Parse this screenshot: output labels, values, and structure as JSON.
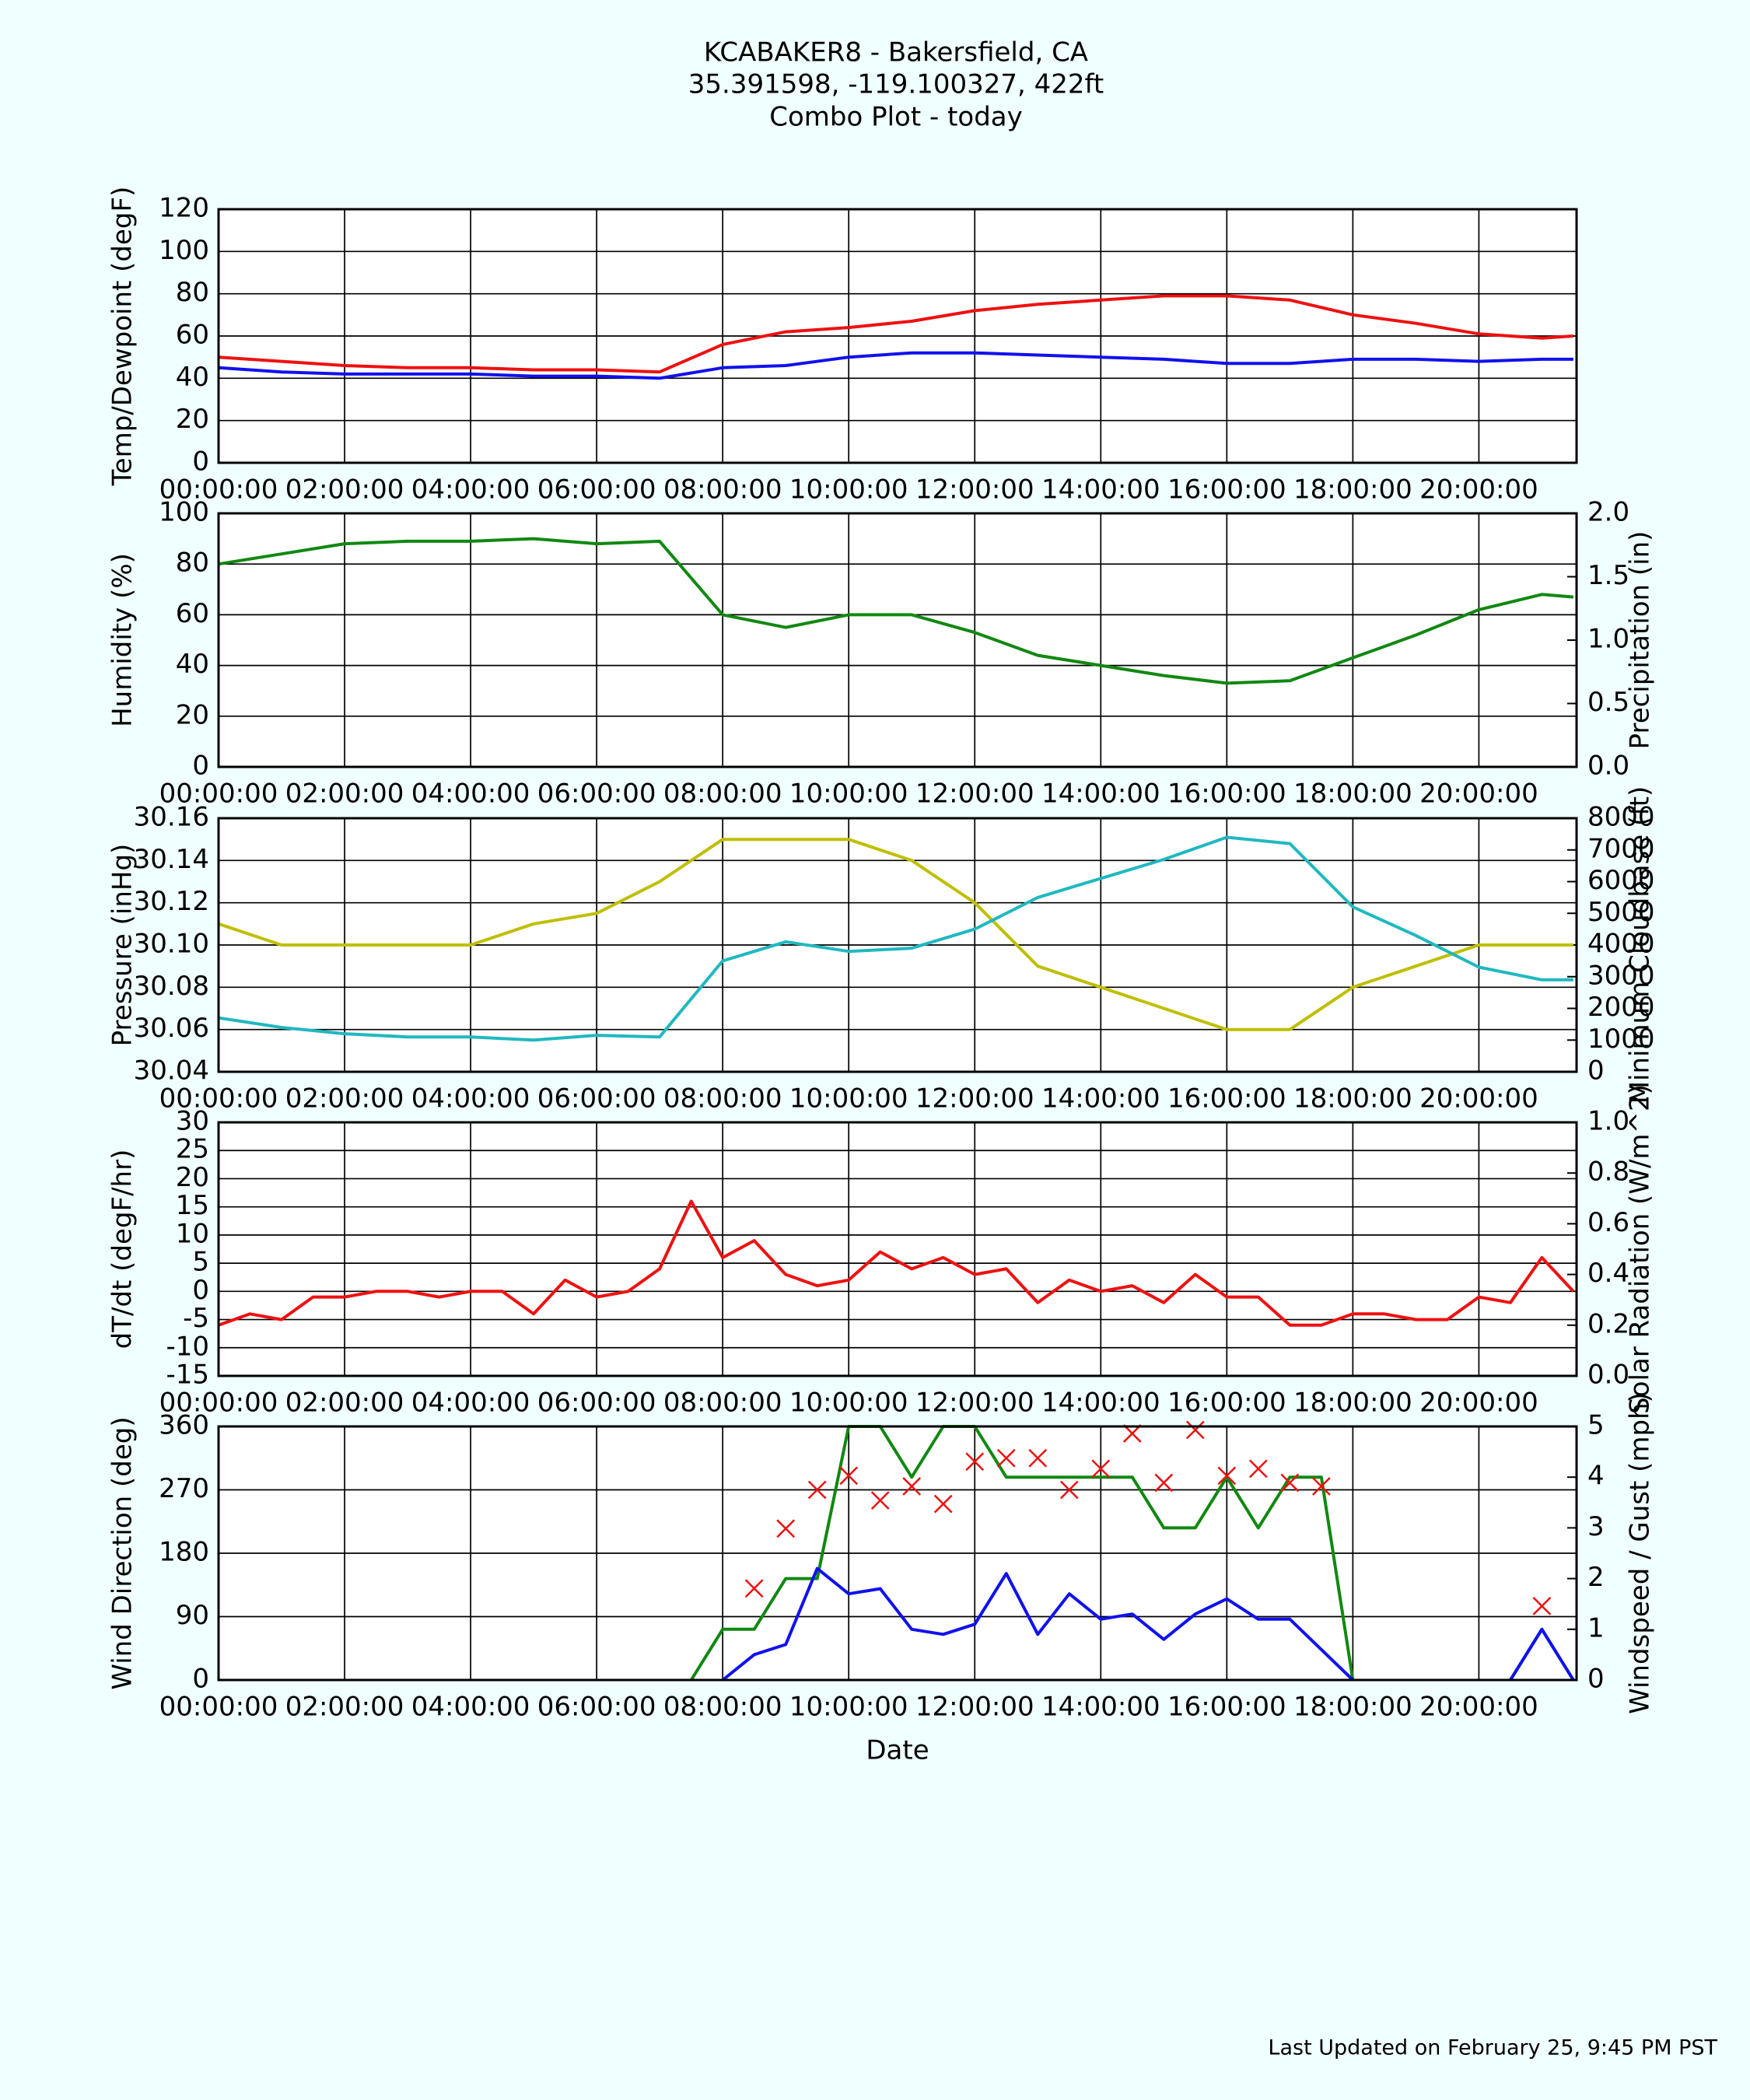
{
  "title": [
    "KCABAKER8 - Bakersfield, CA",
    "35.391598, -119.100327, 422ft",
    "Combo Plot - today"
  ],
  "footer": "Last Updated on February 25, 9:45 PM PST",
  "chart_data": [
    {
      "type": "line",
      "ylabel": "Temp/Dewpoint (degF)",
      "grid": true,
      "x": [
        "00:00:00",
        "01:00:00",
        "02:00:00",
        "03:00:00",
        "04:00:00",
        "05:00:00",
        "06:00:00",
        "07:00:00",
        "08:00:00",
        "09:00:00",
        "10:00:00",
        "11:00:00",
        "12:00:00",
        "13:00:00",
        "14:00:00",
        "15:00:00",
        "16:00:00",
        "17:00:00",
        "18:00:00",
        "19:00:00",
        "20:00:00",
        "21:00:00",
        "21:30:00"
      ],
      "xlim": [
        "00:00:00",
        "21:33:00"
      ],
      "xticks": [
        "00:00:00",
        "02:00:00",
        "04:00:00",
        "06:00:00",
        "08:00:00",
        "10:00:00",
        "12:00:00",
        "14:00:00",
        "16:00:00",
        "18:00:00",
        "20:00:00"
      ],
      "ylim": [
        0,
        120
      ],
      "yticks": [
        0,
        20,
        40,
        60,
        80,
        100,
        120
      ],
      "series": [
        {
          "color": "#ee1111",
          "values": [
            50,
            48,
            46,
            45,
            45,
            44,
            44,
            43,
            56,
            62,
            64,
            67,
            72,
            75,
            77,
            79,
            79,
            77,
            70,
            66,
            61,
            59,
            60
          ]
        },
        {
          "color": "#1111ee",
          "values": [
            45,
            43,
            42,
            42,
            42,
            41,
            41,
            40,
            45,
            46,
            50,
            52,
            52,
            51,
            50,
            49,
            47,
            47,
            49,
            49,
            48,
            49,
            49
          ]
        }
      ]
    },
    {
      "type": "line",
      "ylabel": "Humidity (%)",
      "y2label": "Precipitation (in)",
      "grid": true,
      "x": [
        "00:00:00",
        "01:00:00",
        "02:00:00",
        "03:00:00",
        "04:00:00",
        "05:00:00",
        "06:00:00",
        "07:00:00",
        "08:00:00",
        "09:00:00",
        "10:00:00",
        "11:00:00",
        "12:00:00",
        "13:00:00",
        "14:00:00",
        "15:00:00",
        "16:00:00",
        "17:00:00",
        "18:00:00",
        "19:00:00",
        "20:00:00",
        "21:00:00",
        "21:30:00"
      ],
      "xlim": [
        "00:00:00",
        "21:33:00"
      ],
      "xticks": [
        "00:00:00",
        "02:00:00",
        "04:00:00",
        "06:00:00",
        "08:00:00",
        "10:00:00",
        "12:00:00",
        "14:00:00",
        "16:00:00",
        "18:00:00",
        "20:00:00"
      ],
      "ylim": [
        0,
        100
      ],
      "yticks": [
        0,
        20,
        40,
        60,
        80,
        100
      ],
      "y2lim": [
        0,
        2
      ],
      "y2ticks": [
        {
          "value": 0,
          "label": "0.0"
        },
        0.5,
        {
          "value": 1,
          "label": "1.0"
        },
        1.5,
        {
          "value": 2,
          "label": "2.0"
        }
      ],
      "series": [
        {
          "color": "#118811",
          "values": [
            80,
            84,
            88,
            89,
            89,
            90,
            88,
            89,
            60,
            55,
            60,
            60,
            53,
            44,
            40,
            36,
            33,
            34,
            43,
            52,
            62,
            68,
            67
          ]
        }
      ]
    },
    {
      "type": "line",
      "ylabel": "Pressure (inHg)",
      "y2label": "Minimum Cloudbase (ft)",
      "grid": true,
      "x": [
        "00:00:00",
        "01:00:00",
        "02:00:00",
        "03:00:00",
        "04:00:00",
        "05:00:00",
        "06:00:00",
        "07:00:00",
        "08:00:00",
        "09:00:00",
        "10:00:00",
        "11:00:00",
        "12:00:00",
        "13:00:00",
        "14:00:00",
        "15:00:00",
        "16:00:00",
        "17:00:00",
        "18:00:00",
        "19:00:00",
        "20:00:00",
        "21:00:00",
        "21:30:00"
      ],
      "xlim": [
        "00:00:00",
        "21:33:00"
      ],
      "xticks": [
        "00:00:00",
        "02:00:00",
        "04:00:00",
        "06:00:00",
        "08:00:00",
        "10:00:00",
        "12:00:00",
        "14:00:00",
        "16:00:00",
        "18:00:00",
        "20:00:00"
      ],
      "ylim": [
        30.04,
        30.16
      ],
      "yticks": [
        30.04,
        30.06,
        30.08,
        {
          "value": 30.1,
          "label": "30.10"
        },
        30.12,
        30.14,
        30.16
      ],
      "y2lim": [
        0,
        8000
      ],
      "y2ticks": [
        0,
        1000,
        2000,
        3000,
        4000,
        5000,
        6000,
        7000,
        8000
      ],
      "series": [
        {
          "color": "#bfbf00",
          "values": [
            30.11,
            30.1,
            30.1,
            30.1,
            30.1,
            30.11,
            30.115,
            30.13,
            30.15,
            30.15,
            30.15,
            30.14,
            30.12,
            30.09,
            30.08,
            30.07,
            30.06,
            30.06,
            30.08,
            30.09,
            30.1,
            30.1,
            30.1
          ]
        },
        {
          "color": "#20b8c0",
          "axis": "y2",
          "values": [
            1700,
            1400,
            1200,
            1100,
            1100,
            1000,
            1150,
            1100,
            3500,
            4100,
            3800,
            3900,
            4500,
            5500,
            6100,
            6700,
            7400,
            7200,
            5200,
            4300,
            3300,
            2900,
            2900
          ]
        }
      ]
    },
    {
      "type": "line",
      "ylabel": "dT/dt (degF/hr)",
      "y2label": "Solar Radiation (W/m^2)",
      "grid": true,
      "x": [
        "00:00:00",
        "00:30:00",
        "01:00:00",
        "01:30:00",
        "02:00:00",
        "02:30:00",
        "03:00:00",
        "03:30:00",
        "04:00:00",
        "04:30:00",
        "05:00:00",
        "05:30:00",
        "06:00:00",
        "06:30:00",
        "07:00:00",
        "07:30:00",
        "08:00:00",
        "08:30:00",
        "09:00:00",
        "09:30:00",
        "10:00:00",
        "10:30:00",
        "11:00:00",
        "11:30:00",
        "12:00:00",
        "12:30:00",
        "13:00:00",
        "13:30:00",
        "14:00:00",
        "14:30:00",
        "15:00:00",
        "15:30:00",
        "16:00:00",
        "16:30:00",
        "17:00:00",
        "17:30:00",
        "18:00:00",
        "18:30:00",
        "19:00:00",
        "19:30:00",
        "20:00:00",
        "20:30:00",
        "21:00:00",
        "21:30:00"
      ],
      "xlim": [
        "00:00:00",
        "21:33:00"
      ],
      "xticks": [
        "00:00:00",
        "02:00:00",
        "04:00:00",
        "06:00:00",
        "08:00:00",
        "10:00:00",
        "12:00:00",
        "14:00:00",
        "16:00:00",
        "18:00:00",
        "20:00:00"
      ],
      "ylim": [
        -15,
        30
      ],
      "yticks": [
        -15,
        -10,
        -5,
        0,
        5,
        10,
        15,
        20,
        25,
        30
      ],
      "y2lim": [
        0,
        1
      ],
      "y2ticks": [
        {
          "value": 0,
          "label": "0.0"
        },
        0.2,
        0.4,
        0.6,
        0.8,
        {
          "value": 1,
          "label": "1.0"
        }
      ],
      "series": [
        {
          "color": "#ee1111",
          "values": [
            -6,
            -4,
            -5,
            -1,
            -1,
            0,
            0,
            -1,
            0,
            0,
            -4,
            2,
            -1,
            0,
            4,
            16,
            6,
            9,
            3,
            1,
            2,
            7,
            4,
            6,
            3,
            4,
            -2,
            2,
            0,
            1,
            -2,
            3,
            -1,
            -1,
            -6,
            -6,
            -4,
            -4,
            -5,
            -5,
            -1,
            -2,
            6,
            0
          ]
        }
      ]
    },
    {
      "type": "line",
      "ylabel": "Wind Direction (deg)",
      "y2label": "Windspeed / Gust (mph)",
      "xlabel": "Date",
      "grid": true,
      "x": [
        "00:00:00",
        "00:30:00",
        "01:00:00",
        "01:30:00",
        "02:00:00",
        "02:30:00",
        "03:00:00",
        "03:30:00",
        "04:00:00",
        "04:30:00",
        "05:00:00",
        "05:30:00",
        "06:00:00",
        "06:30:00",
        "07:00:00",
        "07:30:00",
        "08:00:00",
        "08:30:00",
        "09:00:00",
        "09:30:00",
        "10:00:00",
        "10:30:00",
        "11:00:00",
        "11:30:00",
        "12:00:00",
        "12:30:00",
        "13:00:00",
        "13:30:00",
        "14:00:00",
        "14:30:00",
        "15:00:00",
        "15:30:00",
        "16:00:00",
        "16:30:00",
        "17:00:00",
        "17:30:00",
        "18:00:00",
        "18:30:00",
        "19:00:00",
        "19:30:00",
        "20:00:00",
        "20:30:00",
        "21:00:00",
        "21:30:00"
      ],
      "xlim": [
        "00:00:00",
        "21:33:00"
      ],
      "xticks": [
        "00:00:00",
        "02:00:00",
        "04:00:00",
        "06:00:00",
        "08:00:00",
        "10:00:00",
        "12:00:00",
        "14:00:00",
        "16:00:00",
        "18:00:00",
        "20:00:00"
      ],
      "ylim": [
        0,
        360
      ],
      "yticks": [
        0,
        90,
        180,
        270,
        360
      ],
      "y2lim": [
        0,
        5
      ],
      "y2ticks": [
        0,
        1,
        2,
        3,
        4,
        5
      ],
      "series": [
        {
          "color": "#118811",
          "axis": "y2",
          "values": [
            null,
            null,
            null,
            null,
            null,
            null,
            null,
            null,
            null,
            null,
            null,
            null,
            null,
            null,
            null,
            0,
            1,
            1,
            2,
            2,
            5,
            5,
            4,
            5,
            5,
            4,
            4,
            4,
            4,
            4,
            3,
            3,
            4,
            3,
            4,
            4,
            0,
            null,
            null,
            null,
            null,
            0,
            1,
            0
          ]
        },
        {
          "color": "#1111ee",
          "axis": "y2",
          "values": [
            null,
            null,
            null,
            null,
            null,
            null,
            null,
            null,
            null,
            null,
            null,
            null,
            null,
            null,
            null,
            null,
            0,
            0.5,
            0.7,
            2.2,
            1.7,
            1.8,
            1.0,
            0.9,
            1.1,
            2.1,
            0.9,
            1.7,
            1.2,
            1.3,
            0.8,
            1.3,
            1.6,
            1.2,
            1.2,
            0.6,
            0,
            null,
            null,
            null,
            null,
            0,
            1,
            0
          ]
        },
        {
          "color": "#ee1111",
          "type": "scatter",
          "values": [
            null,
            null,
            null,
            null,
            null,
            null,
            null,
            null,
            null,
            null,
            null,
            null,
            null,
            null,
            null,
            null,
            null,
            130,
            215,
            270,
            290,
            255,
            275,
            250,
            310,
            315,
            315,
            270,
            300,
            350,
            280,
            355,
            290,
            300,
            280,
            275,
            null,
            null,
            null,
            null,
            null,
            null,
            105,
            null
          ]
        }
      ]
    }
  ]
}
